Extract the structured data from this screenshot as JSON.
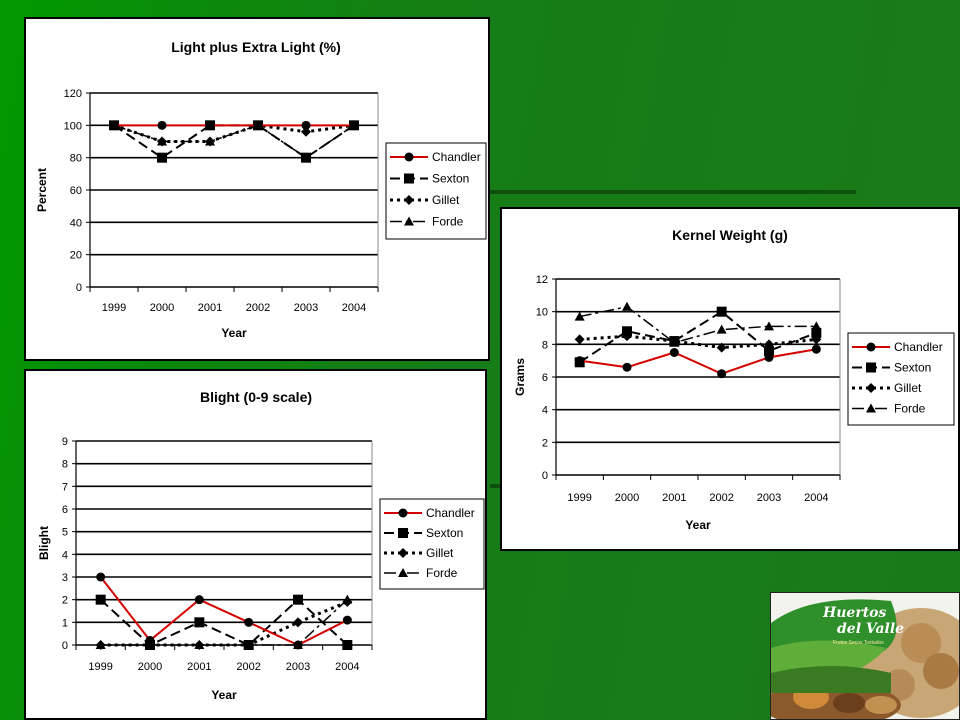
{
  "chart_data": [
    {
      "id": "light",
      "type": "line",
      "title": "Light plus Extra Light (%)",
      "xlabel": "Year",
      "ylabel": "Percent",
      "categories": [
        "1999",
        "2000",
        "2001",
        "2002",
        "2003",
        "2004"
      ],
      "ylim": [
        0,
        120
      ],
      "yticks": [
        0,
        20,
        40,
        60,
        80,
        100,
        120
      ],
      "series": [
        {
          "name": "Chandler",
          "values": [
            100,
            100,
            100,
            100,
            100,
            100
          ]
        },
        {
          "name": "Sexton",
          "values": [
            100,
            80,
            100,
            100,
            80,
            100
          ]
        },
        {
          "name": "Gillet",
          "values": [
            100,
            90,
            90,
            100,
            96,
            100
          ]
        },
        {
          "name": "Forde",
          "values": [
            100,
            90,
            90,
            100,
            80,
            100
          ]
        }
      ],
      "grid": true,
      "legend": "right"
    },
    {
      "id": "blight",
      "type": "line",
      "title": "Blight (0-9 scale)",
      "xlabel": "Year",
      "ylabel": "Blight",
      "categories": [
        "1999",
        "2000",
        "2001",
        "2002",
        "2003",
        "2004"
      ],
      "ylim": [
        0,
        9
      ],
      "yticks": [
        0,
        1,
        2,
        3,
        4,
        5,
        6,
        7,
        8,
        9
      ],
      "series": [
        {
          "name": "Chandler",
          "values": [
            3,
            0.2,
            2,
            1,
            0,
            1.1
          ]
        },
        {
          "name": "Sexton",
          "values": [
            2,
            0,
            1,
            0,
            2,
            0
          ]
        },
        {
          "name": "Gillet",
          "values": [
            0,
            0,
            0,
            0,
            1,
            1.9
          ]
        },
        {
          "name": "Forde",
          "values": [
            0,
            0,
            0,
            0,
            0,
            2
          ]
        }
      ],
      "grid": true,
      "legend": "right"
    },
    {
      "id": "kernel",
      "type": "line",
      "title": "Kernel Weight (g)",
      "xlabel": "Year",
      "ylabel": "Grams",
      "categories": [
        "1999",
        "2000",
        "2001",
        "2002",
        "2003",
        "2004"
      ],
      "ylim": [
        0,
        12
      ],
      "yticks": [
        0,
        2,
        4,
        6,
        8,
        10,
        12
      ],
      "series": [
        {
          "name": "Chandler",
          "values": [
            7.0,
            6.6,
            7.5,
            6.2,
            7.2,
            7.7
          ]
        },
        {
          "name": "Sexton",
          "values": [
            6.9,
            8.8,
            8.2,
            10.0,
            7.6,
            8.7
          ]
        },
        {
          "name": "Gillet",
          "values": [
            8.3,
            8.5,
            8.2,
            7.8,
            8.0,
            8.3
          ]
        },
        {
          "name": "Forde",
          "values": [
            9.7,
            10.3,
            8.1,
            8.9,
            9.1,
            9.1
          ]
        }
      ],
      "grid": true,
      "legend": "right"
    }
  ],
  "logo": {
    "name": "Huertos del Valle",
    "line1": "Huertos",
    "line2": "del Valle",
    "tagline": "Frutos Secos Tostados"
  },
  "colors": {
    "chandler": "#d40000",
    "series": "#000000",
    "background": "#0b8a0b"
  }
}
